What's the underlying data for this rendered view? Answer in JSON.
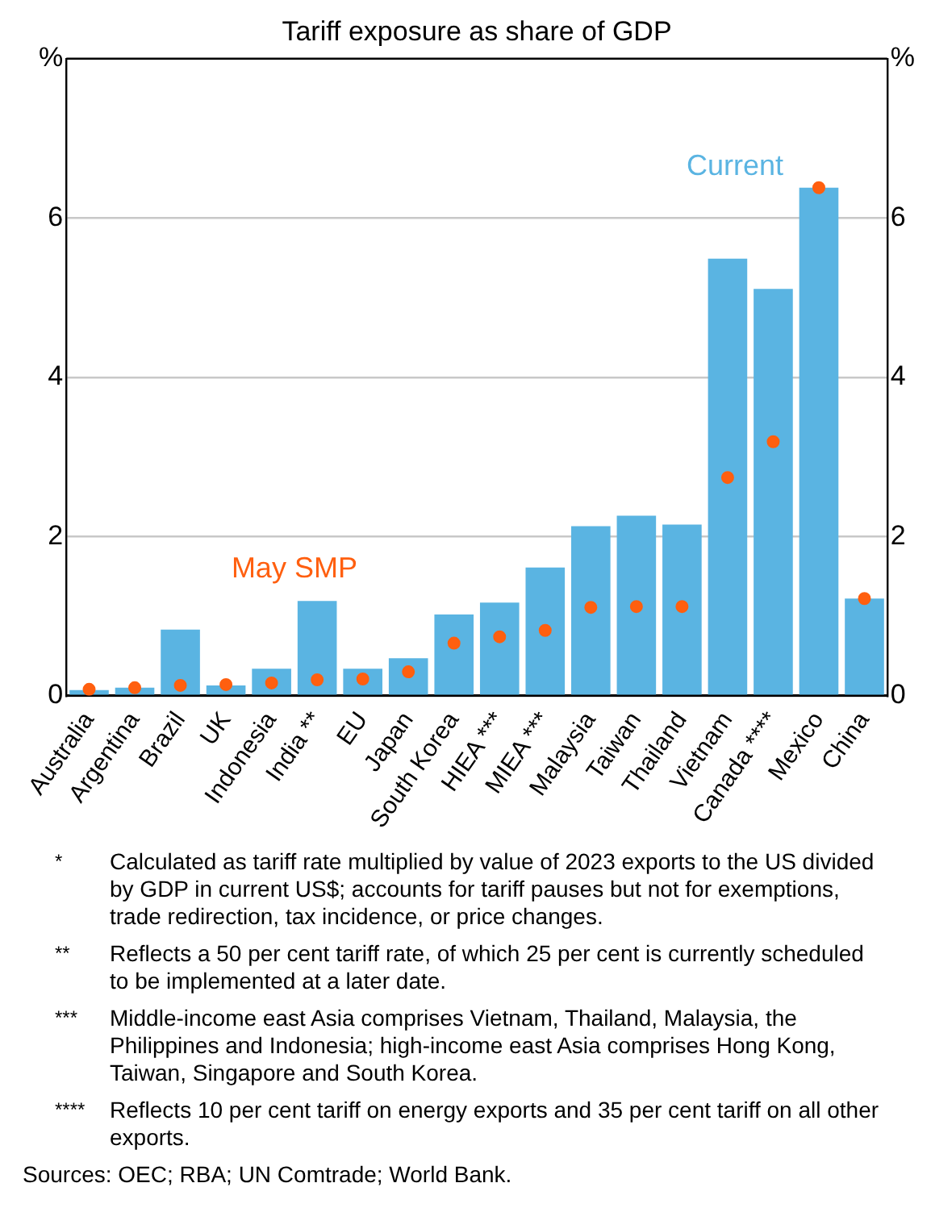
{
  "chart_data": {
    "type": "bar",
    "title": "Tariff exposure as share of GDP",
    "categories": [
      "Australia",
      "Argentina",
      "Brazil",
      "UK",
      "Indonesia",
      "India **",
      "EU",
      "Japan",
      "South Korea",
      "HIEA ***",
      "MIEA ***",
      "Malaysia",
      "Taiwan",
      "Thailand",
      "Vietnam",
      "Canada ****",
      "Mexico",
      "China"
    ],
    "series": [
      {
        "name": "Current",
        "color": "#5ab4e2",
        "values": [
          0.07,
          0.1,
          0.83,
          0.13,
          0.34,
          1.19,
          0.34,
          0.47,
          1.02,
          1.17,
          1.61,
          2.13,
          2.26,
          2.15,
          5.49,
          5.11,
          6.38,
          1.22
        ]
      },
      {
        "name": "May SMP",
        "type": "scatter",
        "color": "#ff5f0f",
        "values": [
          0.08,
          0.1,
          0.13,
          0.14,
          0.16,
          0.2,
          0.21,
          0.3,
          0.66,
          0.74,
          0.82,
          1.11,
          1.12,
          1.12,
          2.74,
          3.19,
          6.38,
          1.22
        ]
      }
    ],
    "ylim": [
      0,
      8
    ],
    "yticks": [
      0,
      2,
      4,
      6,
      {
        "value": 8,
        "label": "%"
      }
    ],
    "y2lim": [
      0,
      8
    ],
    "y2ticks": [
      0,
      2,
      4,
      6,
      {
        "value": 8,
        "label": "%"
      }
    ],
    "grid": "y",
    "legend": false,
    "marker": "circle",
    "annotations": [
      "* Calculated as tariff rate multiplied by value of 2023 exports to the US divided by GDP in current US$; accounts for tariff pauses but not for exemptions, trade redirection, tax incidence, or price changes.",
      "** Reflects a 50 per cent tariff rate, of which 25 per cent is currently scheduled to be implemented at a later date.",
      "*** Middle-income east Asia comprises Vietnam, Thailand, Malaysia, the Philippines and Indonesia; high-income east Asia comprises Hong Kong, Taiwan, Singapore and South Korea.",
      "**** Reflects 10 per cent tariff on energy exports and 35 per cent tariff on all other exports.",
      "Sources: OEC; RBA; UN Comtrade; World Bank."
    ]
  }
}
